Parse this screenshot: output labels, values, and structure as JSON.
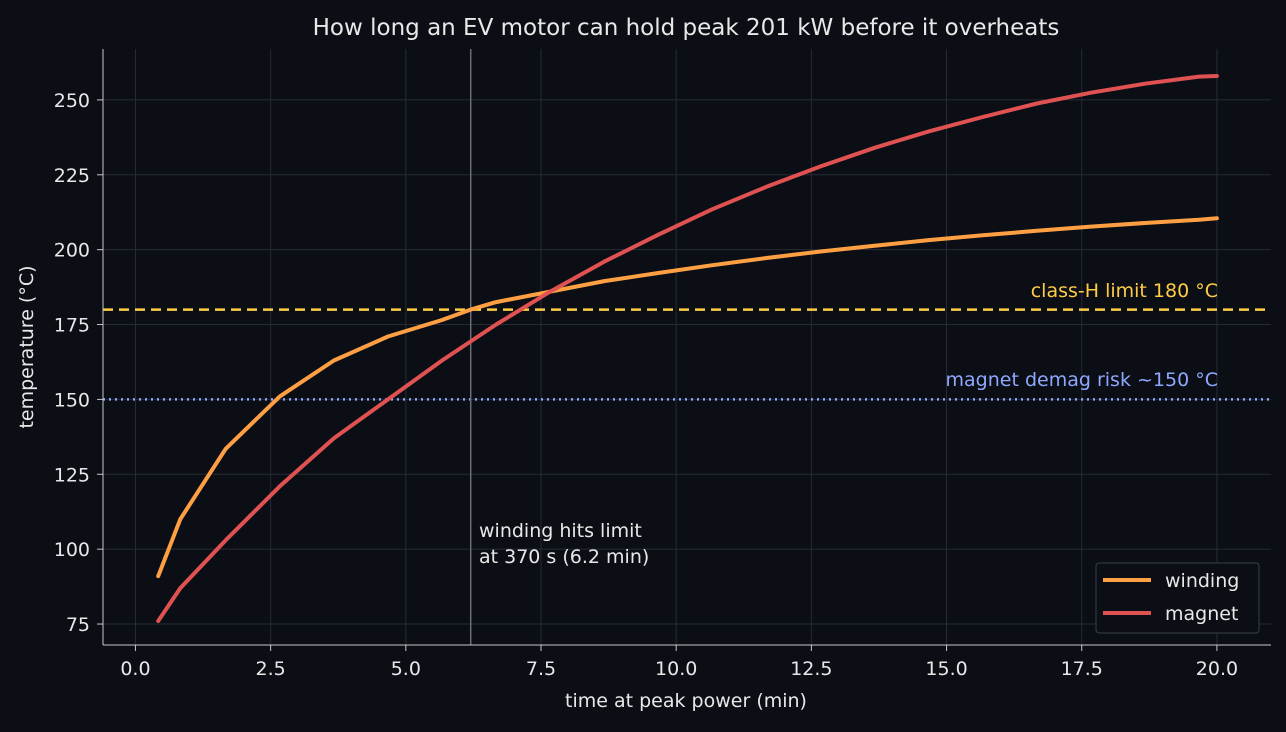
{
  "chart_data": {
    "type": "line",
    "title": "How long an EV motor can hold peak 201 kW before it overheats",
    "xlabel": "time at peak power (min)",
    "ylabel": "temperature (°C)",
    "xlim": [
      -0.6,
      21.0
    ],
    "ylim": [
      68,
      267
    ],
    "x_ticks": [
      0.0,
      2.5,
      5.0,
      7.5,
      10.0,
      12.5,
      15.0,
      17.5,
      20.0
    ],
    "x_tick_labels": [
      "0.0",
      "2.5",
      "5.0",
      "7.5",
      "10.0",
      "12.5",
      "15.0",
      "17.5",
      "20.0"
    ],
    "y_ticks": [
      75,
      100,
      125,
      150,
      175,
      200,
      225,
      250
    ],
    "y_tick_labels": [
      "75",
      "100",
      "125",
      "150",
      "175",
      "200",
      "225",
      "250"
    ],
    "grid": true,
    "legend_position": "lower-right",
    "series": [
      {
        "name": "winding",
        "color": "#ff9f43",
        "x": [
          0.42,
          0.83,
          1.67,
          2.67,
          3.67,
          4.67,
          5.67,
          6.2,
          6.67,
          7.67,
          8.67,
          9.67,
          10.67,
          11.67,
          12.67,
          13.67,
          14.67,
          15.67,
          16.67,
          17.67,
          18.67,
          19.67,
          20.0
        ],
        "values": [
          91,
          110,
          133.5,
          151,
          163,
          171,
          176.5,
          180,
          182.5,
          186,
          189.5,
          192.2,
          194.8,
          197.2,
          199.4,
          201.3,
          203.2,
          204.8,
          206.3,
          207.7,
          208.9,
          210,
          210.5
        ]
      },
      {
        "name": "magnet",
        "color": "#e05252",
        "x": [
          0.42,
          0.83,
          1.67,
          2.67,
          3.67,
          4.67,
          5.67,
          6.67,
          7.67,
          8.67,
          9.67,
          10.67,
          11.67,
          12.67,
          13.67,
          14.67,
          15.67,
          16.67,
          17.67,
          18.67,
          19.67,
          20.0
        ],
        "values": [
          76,
          87,
          103,
          121,
          137,
          150,
          163,
          175,
          186,
          196,
          205,
          213.5,
          221,
          227.8,
          234,
          239.5,
          244.3,
          248.8,
          252.4,
          255.4,
          257.8,
          258
        ]
      }
    ],
    "reference_lines": [
      {
        "axis": "y",
        "value": 180,
        "color": "#ffcc44",
        "style": "dashed",
        "label": "class-H limit 180 °C"
      },
      {
        "axis": "y",
        "value": 150,
        "color": "#8fa8ff",
        "style": "dotted",
        "label": "magnet demag risk ~150 °C"
      },
      {
        "axis": "x",
        "value": 6.2,
        "color": "#6b7078",
        "style": "solid",
        "label": ""
      }
    ],
    "annotation": {
      "x": 6.4,
      "y": 100,
      "lines": [
        "winding hits limit",
        "at 370 s (6.2 min)"
      ]
    }
  }
}
